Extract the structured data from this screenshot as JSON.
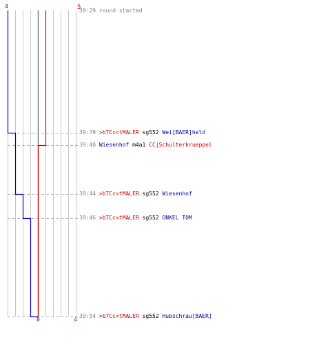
{
  "colors": {
    "red_team": "#e00000",
    "blue_team": "#0000cc",
    "grid": "#c8c8c8",
    "center_line": "#808080",
    "dashed": "#b4b4b4",
    "timestamp": "#808080",
    "red_name": "#cc0000",
    "blue_name": "#000099"
  },
  "chart_data": {
    "type": "line",
    "x_unit": "players alive",
    "y_unit": "round time",
    "series": [
      {
        "team": "blue",
        "values": [
          4,
          3,
          2,
          1,
          0
        ],
        "times": [
          "39:29",
          "39:39",
          "39:44",
          "39:46",
          "39:54"
        ]
      },
      {
        "team": "red",
        "values": [
          5,
          4
        ],
        "times": [
          "39:29",
          "39:40"
        ]
      }
    ],
    "top_labels": {
      "blue": "4",
      "red": "5"
    },
    "bottom_labels": {
      "blue": "0",
      "red": "4"
    }
  },
  "events": [
    {
      "time": "39:29",
      "type": "info",
      "text": "round started"
    },
    {
      "time": "39:39",
      "type": "kill",
      "killer": ">bTCc<tMALER",
      "killer_team": "red",
      "weapon": "sg552",
      "victim": "Wei[BAER]held",
      "victim_team": "blue"
    },
    {
      "time": "39:40",
      "type": "kill",
      "killer": "Wiesenhof",
      "killer_team": "blue",
      "weapon": "m4a1",
      "victim": "CC|Schulterkrueppel",
      "victim_team": "red"
    },
    {
      "time": "39:44",
      "type": "kill",
      "killer": ">bTCc<tMALER",
      "killer_team": "red",
      "weapon": "sg552",
      "victim": "Wiesenhof",
      "victim_team": "blue"
    },
    {
      "time": "39:46",
      "type": "kill",
      "killer": ">bTCc<tMALER",
      "killer_team": "red",
      "weapon": "sg552",
      "victim": "ONKEL TOM",
      "victim_team": "blue"
    },
    {
      "time": "39:54",
      "type": "kill",
      "killer": ">bTCc<tMALER",
      "killer_team": "red",
      "weapon": "sg552",
      "victim": "Hubschrau[BAER]",
      "victim_team": "blue"
    }
  ]
}
